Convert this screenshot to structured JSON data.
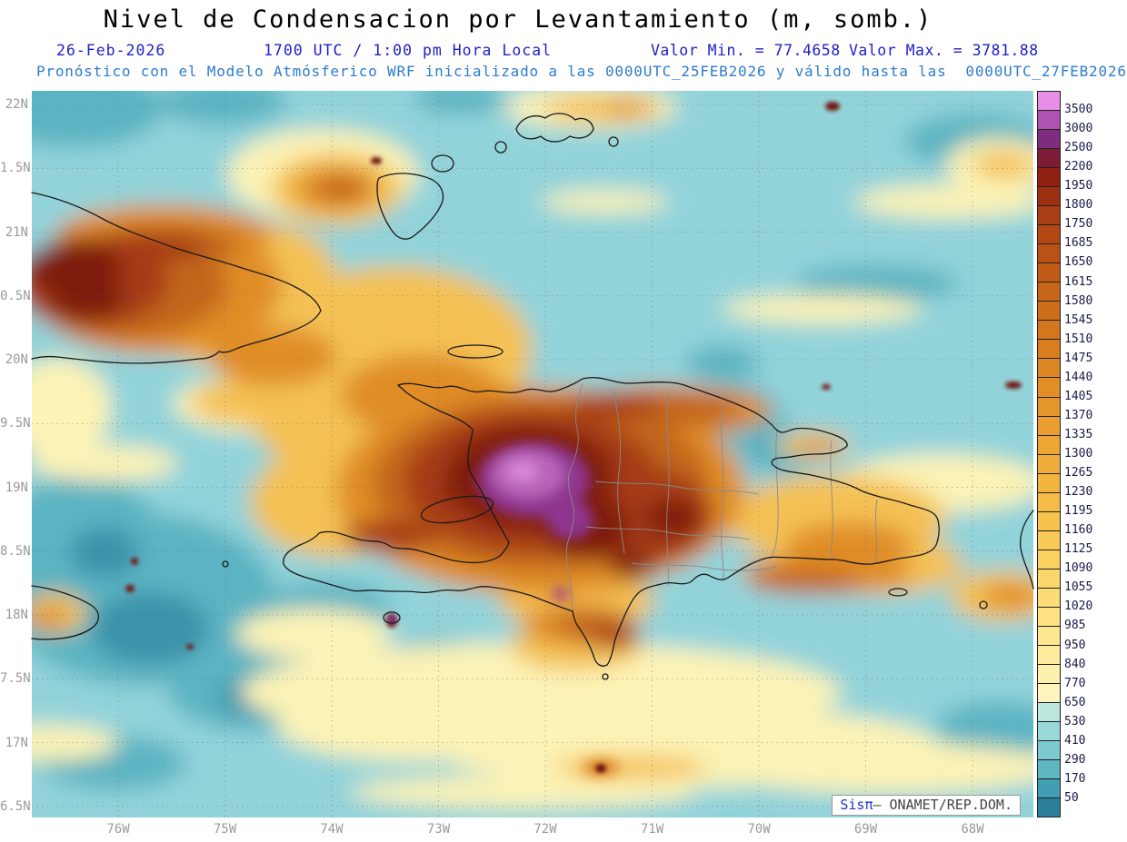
{
  "title": "Nivel de Condensacion por Levantamiento (m, somb.)",
  "header": {
    "date": "26-Feb-2026",
    "time": "1700 UTC / 1:00 pm Hora Local",
    "min_label": "Valor Min. = 77.4658",
    "max_label": "Valor Max. = 3781.88",
    "model_line": "Pronóstico con el Modelo Atmósferico WRF inicializado a las 0000UTC_25FEB2026 y válido hasta las  0000UTC_27FEB2026"
  },
  "map_info": {
    "variable": "Nivel de Condensacion por Levantamiento",
    "units": "m",
    "min_value": 77.4658,
    "max_value": 3781.88
  },
  "axes": {
    "lat_ticks": [
      "22N",
      "1.5N",
      "21N",
      "0.5N",
      "20N",
      "9.5N",
      "19N",
      "8.5N",
      "18N",
      "7.5N",
      "17N",
      "6.5N"
    ],
    "lon_ticks": [
      "76W",
      "75W",
      "74W",
      "73W",
      "72W",
      "71W",
      "70W",
      "69W",
      "68W"
    ]
  },
  "colorbar": {
    "values": [
      "3500",
      "3000",
      "2500",
      "2200",
      "1950",
      "1800",
      "1750",
      "1685",
      "1650",
      "1615",
      "1580",
      "1545",
      "1510",
      "1475",
      "1440",
      "1405",
      "1370",
      "1335",
      "1300",
      "1265",
      "1230",
      "1195",
      "1160",
      "1125",
      "1090",
      "1055",
      "1020",
      "985",
      "950",
      "840",
      "770",
      "650",
      "530",
      "410",
      "290",
      "170",
      "50"
    ],
    "colors": [
      "#E78FE7",
      "#B052B0",
      "#7E2C80",
      "#7E1B35",
      "#8E2112",
      "#9D3012",
      "#A93D13",
      "#B24814",
      "#BA5215",
      "#C05C17",
      "#C76519",
      "#CD6E1B",
      "#D3761E",
      "#D87E21",
      "#DD8624",
      "#E18E27",
      "#E5962B",
      "#E99E2F",
      "#ECA634",
      "#EFAE39",
      "#F2B53F",
      "#F4BC46",
      "#F6C34E",
      "#F8CA57",
      "#FAD061",
      "#FBD66B",
      "#FCDC77",
      "#FDE183",
      "#FDE690",
      "#FEEB9E",
      "#FEF0AD",
      "#FFF4BD",
      "#BCE7DF",
      "#9AD9DA",
      "#7CC9CF",
      "#5EB7C3",
      "#419EB3",
      "#2C7F9B"
    ]
  },
  "credit": {
    "prefix": "Sis",
    "pi": "π",
    "suffix": "– ONAMET/REP.DOM."
  }
}
